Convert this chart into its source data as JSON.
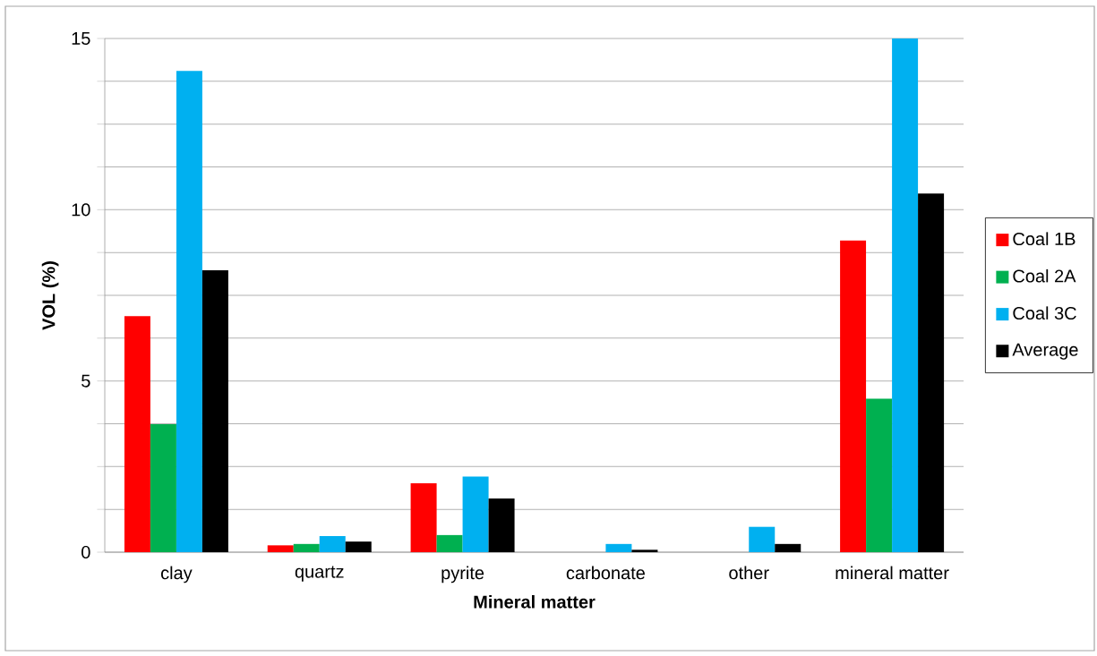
{
  "chart_data": {
    "type": "bar",
    "xlabel": "Mineral matter",
    "ylabel": "VOL (%)",
    "categories": [
      "clay",
      "quartz",
      "pyrite",
      "carbonate",
      "other",
      "mineral matter"
    ],
    "series": [
      {
        "name": "Coal  1B",
        "color": "#ff0000",
        "values": [
          6.89,
          0.2,
          2.01,
          0,
          0,
          9.1
        ]
      },
      {
        "name": "Coal 2A",
        "color": "#00b050",
        "values": [
          3.74,
          0.24,
          0.5,
          0,
          0,
          4.48
        ]
      },
      {
        "name": "Coal 3C",
        "color": "#00b0f0",
        "values": [
          14.05,
          0.47,
          2.21,
          0.24,
          0.74,
          15
        ]
      },
      {
        "name": "Average",
        "color": "#000000",
        "values": [
          8.23,
          0.31,
          1.57,
          0.07,
          0.24,
          10.47
        ]
      }
    ],
    "ylim": [
      0,
      15
    ],
    "yticks": [
      0,
      {
        "value": 1.25,
        "label": null
      },
      {
        "value": 2.5,
        "label": null
      },
      {
        "value": 3.75,
        "label": null
      },
      5,
      {
        "value": 6.25,
        "label": null
      },
      {
        "value": 7.5,
        "label": null
      },
      {
        "value": 8.75,
        "label": null
      },
      10,
      {
        "value": 11.25,
        "label": null
      },
      {
        "value": 12.5,
        "label": null
      },
      {
        "value": 13.75,
        "label": null
      },
      15
    ],
    "grid": "y",
    "legend": "right"
  }
}
